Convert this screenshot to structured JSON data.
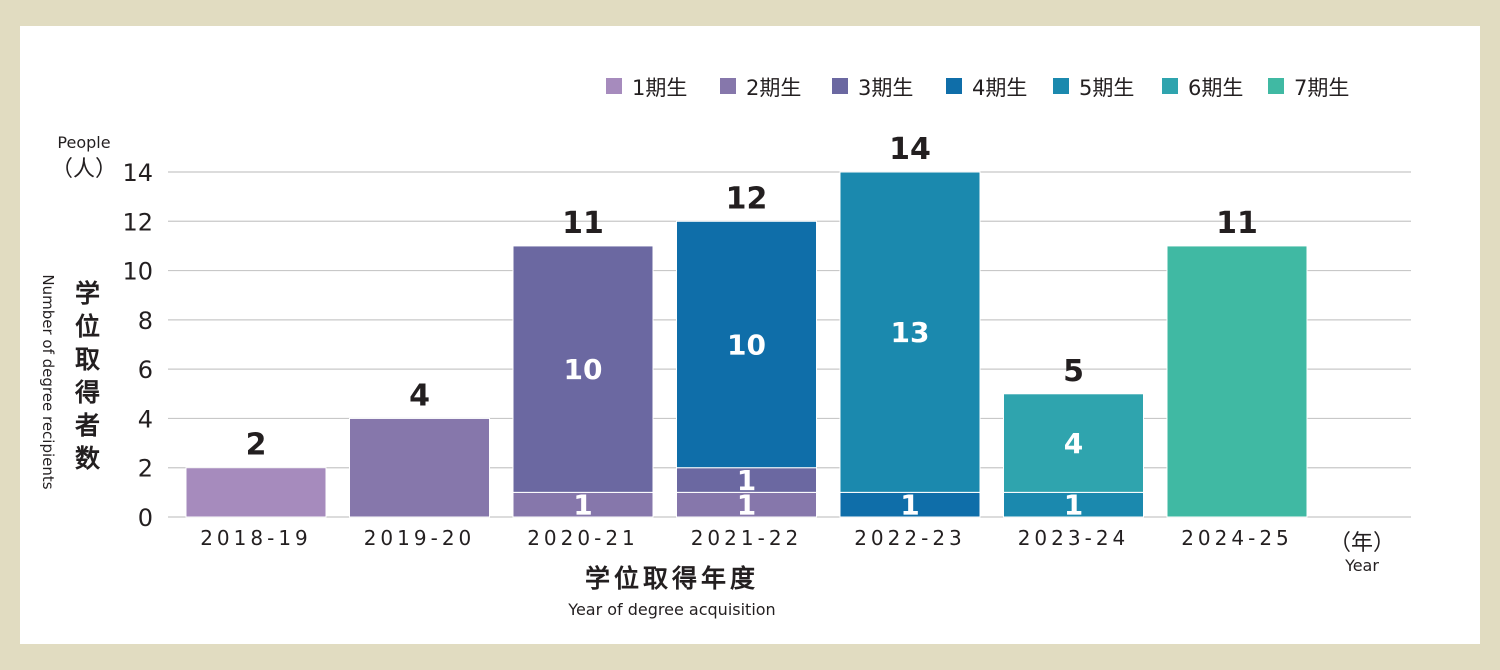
{
  "chart_data": {
    "type": "bar",
    "stacked": true,
    "categories": [
      "2018-19",
      "2019-20",
      "2020-21",
      "2021-22",
      "2022-23",
      "2023-24",
      "2024-25"
    ],
    "series": [
      {
        "name": "1期生",
        "color": "#a68bbd",
        "values": [
          2,
          0,
          0,
          0,
          0,
          0,
          0
        ]
      },
      {
        "name": "2期生",
        "color": "#8677ab",
        "values": [
          0,
          4,
          1,
          1,
          0,
          0,
          0
        ]
      },
      {
        "name": "3期生",
        "color": "#6b68a1",
        "values": [
          0,
          0,
          10,
          1,
          0,
          0,
          0
        ]
      },
      {
        "name": "4期生",
        "color": "#0f6ea9",
        "values": [
          0,
          0,
          0,
          10,
          1,
          0,
          0
        ]
      },
      {
        "name": "5期生",
        "color": "#1b89ae",
        "values": [
          0,
          0,
          0,
          0,
          13,
          1,
          0
        ]
      },
      {
        "name": "6期生",
        "color": "#2fa4ae",
        "values": [
          0,
          0,
          0,
          0,
          0,
          4,
          0
        ]
      },
      {
        "name": "7期生",
        "color": "#40b9a3",
        "values": [
          0,
          0,
          0,
          0,
          0,
          0,
          11
        ]
      }
    ],
    "totals": [
      2,
      4,
      11,
      12,
      14,
      5,
      11
    ],
    "ylim": [
      0,
      14
    ],
    "yticks": [
      0,
      2,
      4,
      6,
      8,
      10,
      12,
      14
    ],
    "grid": true,
    "legend": "top-right",
    "ylabel_unit_en": "People",
    "ylabel_unit_ja": "（人）",
    "ylabel_ja": "学位取得者数",
    "ylabel_en": "Number of degree recipients",
    "xlabel_ja": "学位取得年度",
    "xlabel_en": "Year of degree acquisition",
    "xlabel_unit_ja": "（年）",
    "xlabel_unit_en": "Year"
  }
}
